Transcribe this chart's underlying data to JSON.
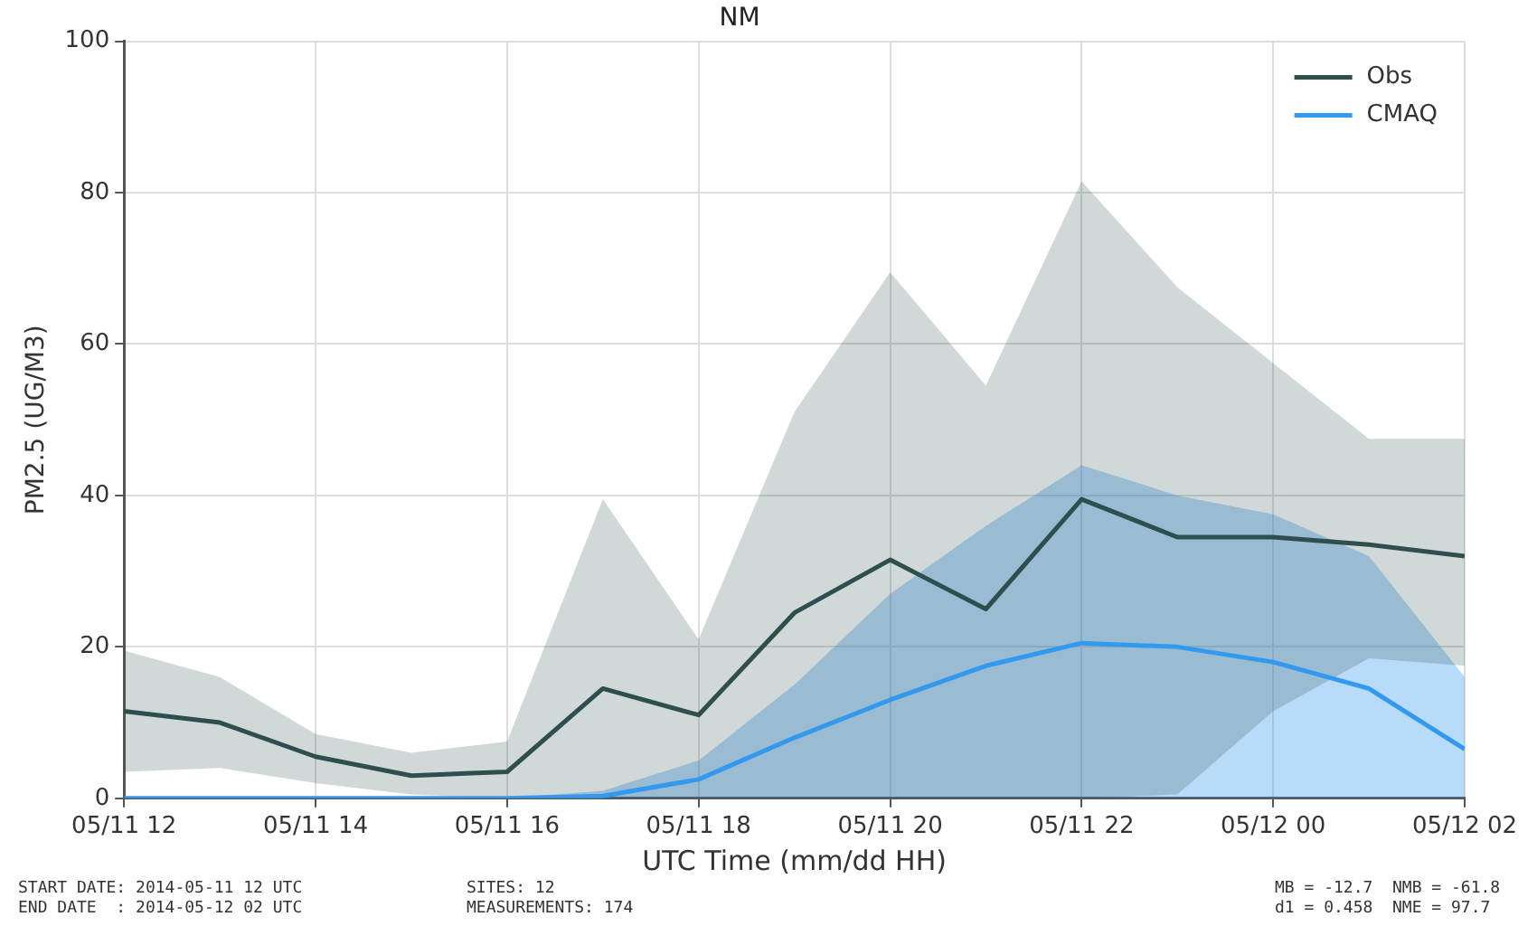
{
  "chart_data": {
    "type": "line",
    "title": "NM",
    "xlabel": "UTC Time (mm/dd HH)",
    "ylabel": "PM2.5 (UG/M3)",
    "categories": [
      "05/11 12",
      null,
      "05/11 14",
      null,
      "05/11 16",
      null,
      "05/11 18",
      null,
      "05/11 20",
      null,
      "05/11 22",
      null,
      "05/12 00",
      null,
      "05/12 02"
    ],
    "series": [
      {
        "name": "Obs",
        "color": "#2f4f4f",
        "values": [
          11.5,
          10,
          5.5,
          3,
          3.5,
          14.5,
          11,
          24.5,
          31.5,
          25,
          39.5,
          34.5,
          34.5,
          33.5,
          32
        ],
        "lower": [
          3.5,
          4,
          2,
          0.5,
          0,
          0,
          0,
          0,
          0,
          0,
          0,
          0.5,
          11.5,
          18.5,
          17.5
        ],
        "upper": [
          19.5,
          16,
          8.5,
          6,
          7.5,
          39.5,
          21,
          51,
          69.5,
          54.5,
          81.5,
          67.5,
          57.5,
          47.5,
          47.5
        ]
      },
      {
        "name": "CMAQ",
        "color": "#3399ee",
        "values": [
          0,
          0,
          0,
          0,
          0,
          0.3,
          2.5,
          8,
          13,
          17.5,
          20.5,
          20,
          18,
          14.5,
          6.5
        ],
        "lower": [
          0,
          0,
          0,
          0,
          0,
          0,
          0,
          0,
          0,
          0,
          0,
          0,
          0,
          0,
          0
        ],
        "upper": [
          0,
          0,
          0,
          0,
          0,
          1,
          5,
          15,
          27,
          36,
          44,
          40,
          37.5,
          32,
          16
        ]
      }
    ],
    "ylim": [
      0,
      100
    ],
    "yticks": [
      0,
      20,
      40,
      60,
      80,
      100
    ],
    "grid": true,
    "legend": "top right",
    "annotations": [
      "START DATE: 2014-05-11 12 UTC",
      "END DATE  : 2014-05-12 02 UTC",
      "SITES: 12",
      "MEASUREMENTS: 174",
      "MB = -12.7",
      "NMB = -61.8",
      "d1 = 0.458",
      "NME = 97.7"
    ]
  }
}
